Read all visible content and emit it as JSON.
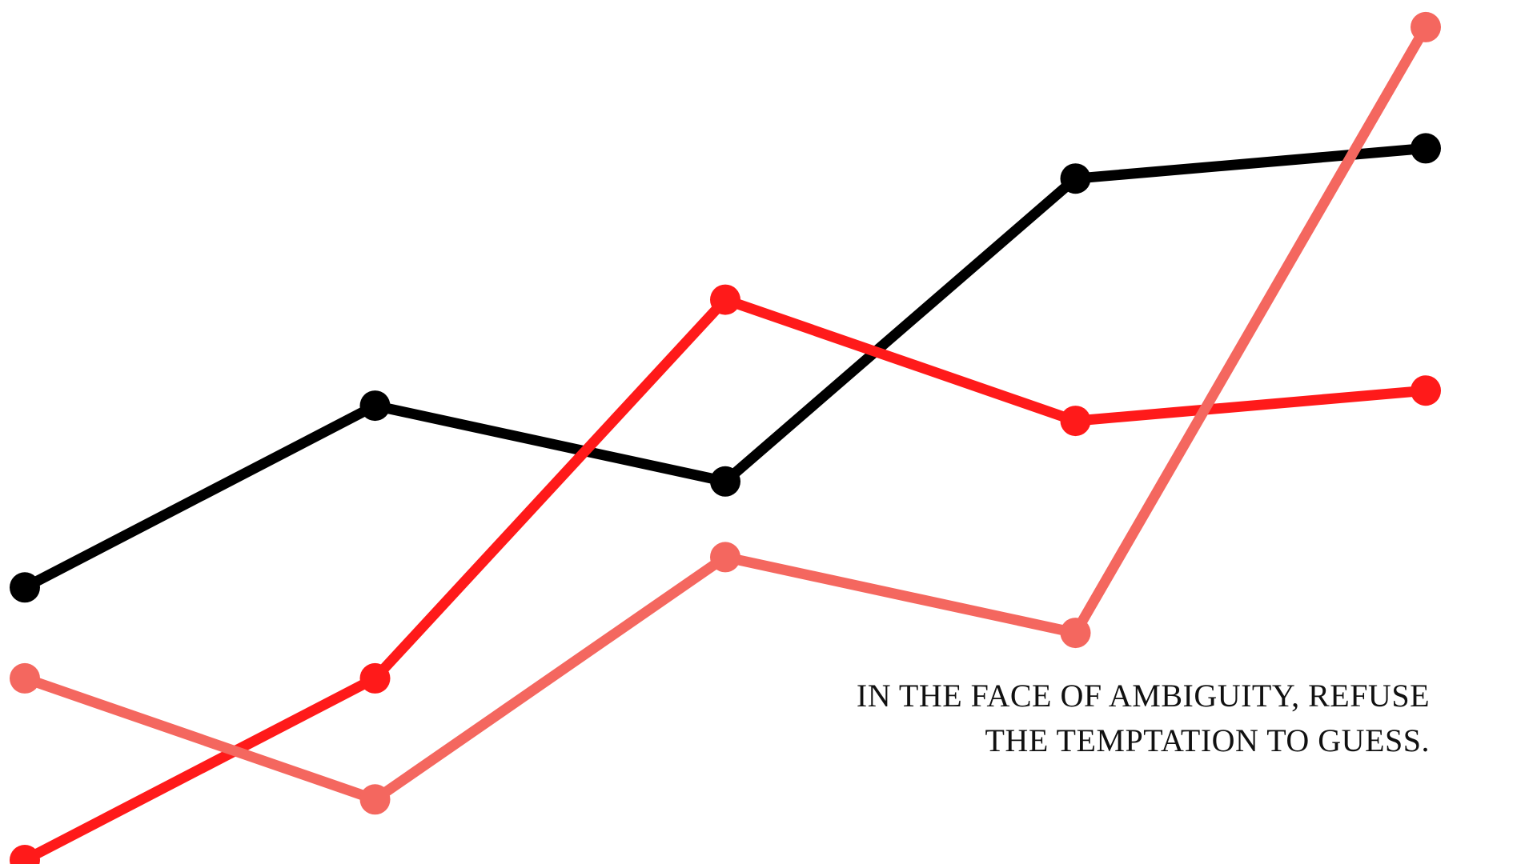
{
  "colors": {
    "background": "#ffffff",
    "black_series": "#000000",
    "red_series": "#ff1a1a",
    "salmon_series": "#f4675f",
    "text": "#111111"
  },
  "quote": {
    "line1": "IN THE FACE OF AMBIGUITY, REFUSE",
    "line2": "THE TEMPTATION TO GUESS."
  },
  "chart_data": {
    "type": "line",
    "title": "",
    "xlabel": "",
    "ylabel": "",
    "grid": false,
    "legend": "none",
    "axes_visible": false,
    "x": [
      0,
      1,
      2,
      3,
      4
    ],
    "xlim": [
      0,
      4
    ],
    "ylim": [
      0,
      14
    ],
    "series": [
      {
        "color": "#000000",
        "values": [
          4.5,
          7.5,
          6.25,
          11.25,
          11.75
        ]
      },
      {
        "color": "#ff1a1a",
        "values": [
          0.0,
          3.0,
          9.25,
          7.25,
          7.75
        ]
      },
      {
        "color": "#f4675f",
        "values": [
          3.0,
          1.0,
          5.0,
          3.75,
          13.75
        ]
      }
    ]
  }
}
